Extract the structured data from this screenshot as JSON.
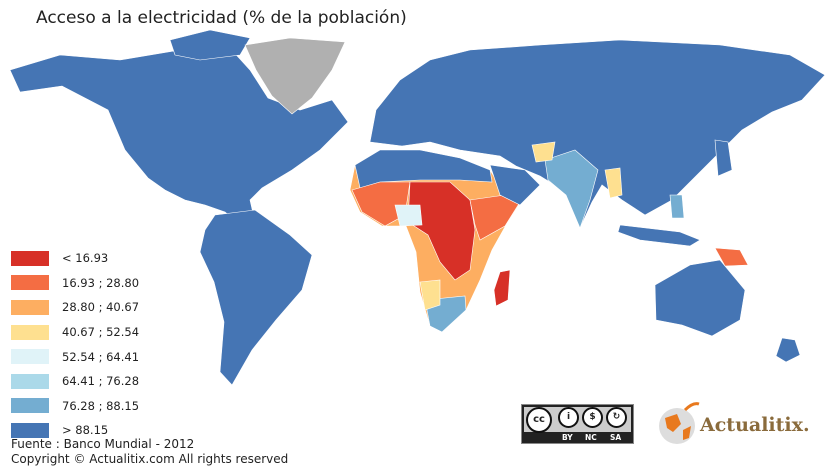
{
  "title": "Acceso a la electricidad (% de la población)",
  "legend": {
    "items": [
      {
        "label": "< 16.93",
        "color": "#d73027"
      },
      {
        "label": "16.93 ; 28.80",
        "color": "#f46d43"
      },
      {
        "label": "28.80 ; 40.67",
        "color": "#fdae61"
      },
      {
        "label": "40.67 ; 52.54",
        "color": "#fee090"
      },
      {
        "label": "52.54 ; 64.41",
        "color": "#e0f3f8"
      },
      {
        "label": "64.41 ; 76.28",
        "color": "#abd9e9"
      },
      {
        "label": "76.28 ; 88.15",
        "color": "#74add1"
      },
      {
        "label": "> 88.15",
        "color": "#4575b4"
      }
    ],
    "no_data_color": "#b0b0b0"
  },
  "footer": {
    "source": "Fuente : Banco Mundial - 2012",
    "copyright": "Copyright © Actualitix.com All rights reserved"
  },
  "license_badge": {
    "main": "cc",
    "labels": [
      "BY",
      "NC",
      "SA"
    ]
  },
  "brand": {
    "logo_text": "Actualitix.",
    "icon": "globe-cable-icon"
  }
}
